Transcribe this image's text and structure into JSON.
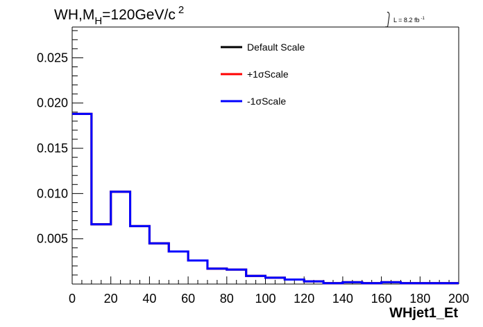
{
  "chart_data": {
    "type": "line",
    "style": "step-histogram",
    "title": "WH,M",
    "title_subscript": "H",
    "title_rest": "=120GeV/c",
    "title_superscript": "2",
    "lumi_label": "L = 8.2 fb",
    "lumi_superscript": "-1",
    "xlabel": "WHjet1_Et",
    "ylabel": "",
    "xlim": [
      0,
      200
    ],
    "ylim": [
      0,
      0.0284
    ],
    "x_ticks": [
      "0",
      "20",
      "40",
      "60",
      "80",
      "100",
      "120",
      "140",
      "160",
      "180",
      "200"
    ],
    "y_ticks": [
      "0.005",
      "0.010",
      "0.015",
      "0.020",
      "0.025"
    ],
    "y_tick_values": [
      0.005,
      0.01,
      0.015,
      0.02,
      0.025
    ],
    "bin_edges": [
      0,
      10,
      20,
      30,
      40,
      50,
      60,
      70,
      80,
      90,
      100,
      110,
      120,
      130,
      140,
      150,
      160,
      170,
      180,
      190,
      200
    ],
    "series": [
      {
        "name": "Default Scale",
        "color": "#000000",
        "values": [
          0.0188,
          0.0066,
          0.0102,
          0.0064,
          0.0045,
          0.0036,
          0.0026,
          0.0017,
          0.0016,
          0.0009,
          0.0007,
          0.0005,
          0.0003,
          0.0001,
          0.0002,
          0.0001,
          0.0002,
          0.0001,
          0.0001,
          0.0001
        ]
      },
      {
        "name": "+1σScale",
        "color": "#ff0000",
        "values": [
          0.0188,
          0.0066,
          0.0102,
          0.0064,
          0.0045,
          0.0036,
          0.0026,
          0.0017,
          0.0016,
          0.0009,
          0.0007,
          0.0005,
          0.0003,
          0.0001,
          0.0002,
          0.0001,
          0.0002,
          0.0001,
          0.0001,
          0.0001
        ]
      },
      {
        "name": "-1σScale",
        "color": "#0000ff",
        "values": [
          0.0188,
          0.0066,
          0.0102,
          0.0064,
          0.0045,
          0.0036,
          0.0026,
          0.0017,
          0.0016,
          0.0009,
          0.0007,
          0.0005,
          0.0003,
          0.0001,
          0.0002,
          0.0001,
          0.0002,
          0.0001,
          0.0001,
          0.0001
        ]
      }
    ],
    "legend_placement": "top-center",
    "grid": false
  }
}
